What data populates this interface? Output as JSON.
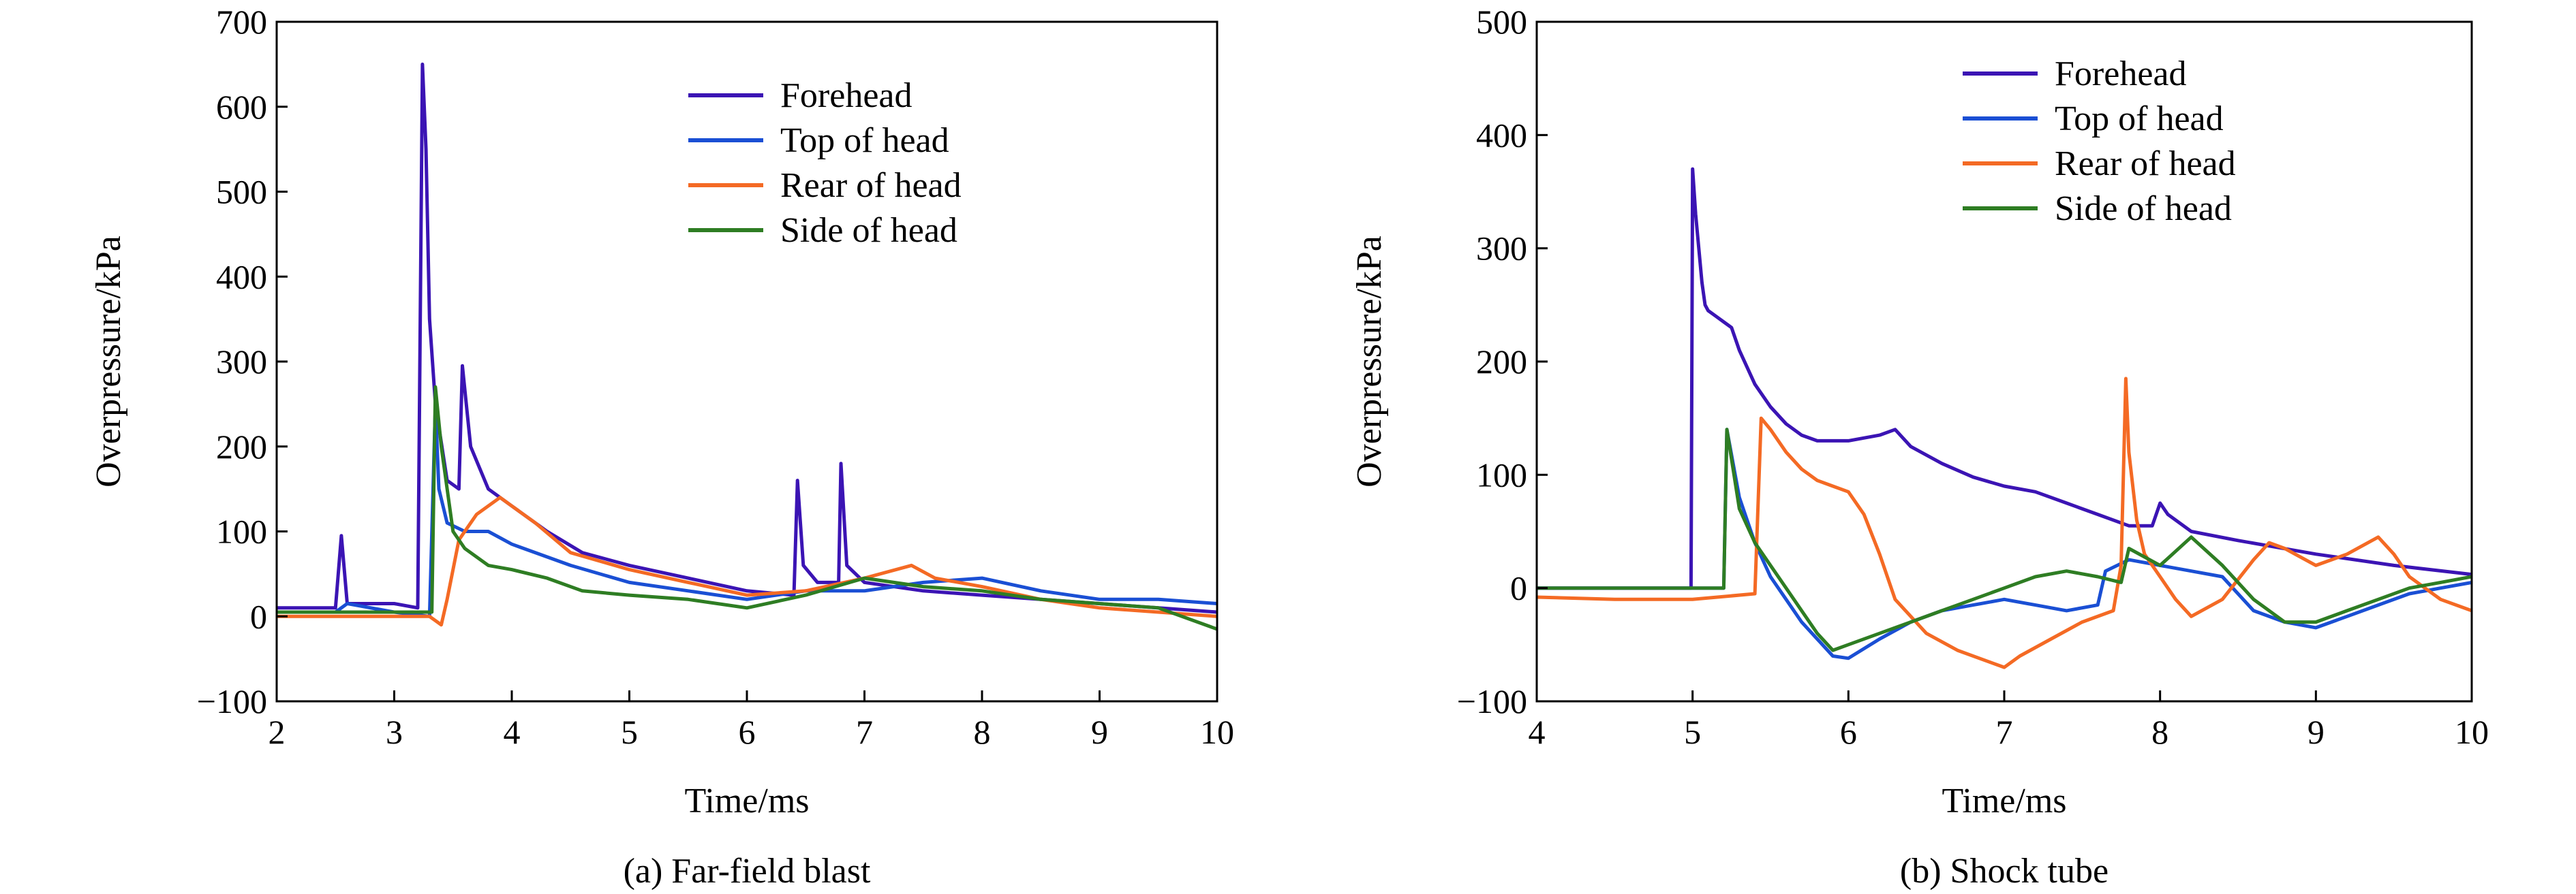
{
  "chart_data": [
    {
      "type": "line",
      "caption": "(a) Far-field blast",
      "xlabel": "Time/ms",
      "ylabel": "Overpressure/kPa",
      "xlim": [
        2,
        10
      ],
      "ylim": [
        -100,
        700
      ],
      "xticks": [
        "2",
        "3",
        "4",
        "5",
        "6",
        "7",
        "8",
        "9",
        "10"
      ],
      "yticks": [
        "−100",
        "0",
        "100",
        "200",
        "300",
        "400",
        "500",
        "600",
        "700"
      ],
      "legend_position": "top-right",
      "series": [
        {
          "name": "Forehead",
          "color": "#3b14b4",
          "x": [
            2,
            2.5,
            2.55,
            2.6,
            3.0,
            3.2,
            3.24,
            3.27,
            3.3,
            3.35,
            3.45,
            3.55,
            3.58,
            3.65,
            3.8,
            4.0,
            4.3,
            4.6,
            5.0,
            5.5,
            6.0,
            6.4,
            6.43,
            6.48,
            6.6,
            6.78,
            6.8,
            6.85,
            7.0,
            7.5,
            8.0,
            8.5,
            9.0,
            9.5,
            10.0
          ],
          "y": [
            10,
            10,
            95,
            15,
            15,
            10,
            650,
            550,
            350,
            250,
            160,
            150,
            295,
            200,
            150,
            130,
            100,
            75,
            60,
            45,
            30,
            25,
            160,
            60,
            40,
            40,
            180,
            60,
            40,
            30,
            25,
            20,
            15,
            10,
            5
          ]
        },
        {
          "name": "Top of head",
          "color": "#1a4fd4",
          "x": [
            2,
            2.5,
            2.6,
            3.0,
            3.3,
            3.35,
            3.38,
            3.45,
            3.6,
            3.8,
            4.0,
            4.5,
            5.0,
            5.5,
            6.0,
            6.5,
            7.0,
            7.5,
            8.0,
            8.5,
            9.0,
            9.5,
            10.0
          ],
          "y": [
            5,
            5,
            15,
            5,
            0,
            250,
            150,
            110,
            100,
            100,
            85,
            60,
            40,
            30,
            20,
            30,
            30,
            40,
            45,
            30,
            20,
            20,
            15
          ]
        },
        {
          "name": "Rear of head",
          "color": "#f46a24",
          "x": [
            2,
            3.0,
            3.3,
            3.4,
            3.45,
            3.55,
            3.7,
            3.9,
            4.0,
            4.2,
            4.5,
            5.0,
            5.5,
            6.0,
            6.5,
            7.0,
            7.4,
            7.6,
            8.0,
            8.5,
            9.0,
            9.5,
            10.0
          ],
          "y": [
            0,
            0,
            0,
            -10,
            20,
            90,
            120,
            140,
            130,
            110,
            75,
            55,
            40,
            25,
            30,
            45,
            60,
            45,
            35,
            20,
            10,
            5,
            0
          ]
        },
        {
          "name": "Side of head",
          "color": "#2e7d23",
          "x": [
            2,
            3.0,
            3.32,
            3.35,
            3.4,
            3.5,
            3.6,
            3.8,
            4.0,
            4.3,
            4.6,
            5.0,
            5.5,
            6.0,
            6.5,
            7.0,
            7.5,
            8.0,
            8.5,
            9.0,
            9.5,
            10.0
          ],
          "y": [
            5,
            5,
            5,
            270,
            200,
            100,
            80,
            60,
            55,
            45,
            30,
            25,
            20,
            10,
            25,
            45,
            35,
            30,
            20,
            15,
            10,
            -15
          ]
        }
      ]
    },
    {
      "type": "line",
      "caption": "(b) Shock tube",
      "xlabel": "Time/ms",
      "ylabel": "Overpressure/kPa",
      "xlim": [
        4,
        10
      ],
      "ylim": [
        -100,
        500
      ],
      "xticks": [
        "4",
        "5",
        "6",
        "7",
        "8",
        "9",
        "10"
      ],
      "yticks": [
        "−100",
        "0",
        "100",
        "200",
        "300",
        "400",
        "500"
      ],
      "legend_position": "top-right",
      "series": [
        {
          "name": "Forehead",
          "color": "#3b14b4",
          "x": [
            4.0,
            4.99,
            5.0,
            5.02,
            5.04,
            5.06,
            5.08,
            5.1,
            5.15,
            5.2,
            5.25,
            5.3,
            5.4,
            5.5,
            5.6,
            5.7,
            5.8,
            6.0,
            6.2,
            6.3,
            6.4,
            6.6,
            6.8,
            7.0,
            7.2,
            7.4,
            7.6,
            7.8,
            7.95,
            8.0,
            8.05,
            8.2,
            8.5,
            9.0,
            9.5,
            10.0
          ],
          "y": [
            0,
            0,
            370,
            330,
            300,
            270,
            250,
            245,
            240,
            235,
            230,
            210,
            180,
            160,
            145,
            135,
            130,
            130,
            135,
            140,
            125,
            110,
            98,
            90,
            85,
            75,
            65,
            55,
            55,
            75,
            65,
            50,
            42,
            30,
            20,
            12
          ]
        },
        {
          "name": "Top of head",
          "color": "#1a4fd4",
          "x": [
            4.0,
            5.2,
            5.22,
            5.3,
            5.4,
            5.5,
            5.6,
            5.7,
            5.8,
            5.9,
            6.0,
            6.2,
            6.4,
            6.6,
            6.8,
            7.0,
            7.2,
            7.4,
            7.6,
            7.65,
            7.8,
            8.0,
            8.2,
            8.4,
            8.6,
            8.8,
            9.0,
            9.2,
            9.4,
            9.6,
            9.8,
            10.0
          ],
          "y": [
            0,
            0,
            140,
            80,
            40,
            10,
            -10,
            -30,
            -45,
            -60,
            -62,
            -45,
            -30,
            -20,
            -15,
            -10,
            -15,
            -20,
            -15,
            15,
            25,
            20,
            15,
            10,
            -20,
            -30,
            -35,
            -25,
            -15,
            -5,
            0,
            5
          ]
        },
        {
          "name": "Rear of head",
          "color": "#f46a24",
          "x": [
            4.0,
            4.5,
            5.0,
            5.4,
            5.44,
            5.5,
            5.6,
            5.7,
            5.8,
            5.9,
            6.0,
            6.1,
            6.2,
            6.3,
            6.5,
            6.7,
            6.9,
            7.0,
            7.1,
            7.3,
            7.5,
            7.7,
            7.75,
            7.78,
            7.8,
            7.85,
            7.9,
            8.0,
            8.1,
            8.2,
            8.4,
            8.6,
            8.7,
            8.8,
            9.0,
            9.2,
            9.4,
            9.5,
            9.6,
            9.8,
            10.0
          ],
          "y": [
            -8,
            -10,
            -10,
            -5,
            150,
            140,
            120,
            105,
            95,
            90,
            85,
            65,
            30,
            -10,
            -40,
            -55,
            -65,
            -70,
            -60,
            -45,
            -30,
            -20,
            20,
            185,
            120,
            60,
            30,
            10,
            -10,
            -25,
            -10,
            25,
            40,
            35,
            20,
            30,
            45,
            30,
            10,
            -10,
            -20
          ]
        },
        {
          "name": "Side of head",
          "color": "#2e7d23",
          "x": [
            4.0,
            5.2,
            5.22,
            5.3,
            5.4,
            5.5,
            5.6,
            5.7,
            5.8,
            5.9,
            6.0,
            6.2,
            6.4,
            6.6,
            6.8,
            7.0,
            7.2,
            7.4,
            7.6,
            7.75,
            7.8,
            8.0,
            8.2,
            8.4,
            8.6,
            8.8,
            9.0,
            9.2,
            9.4,
            9.6,
            9.8,
            10.0
          ],
          "y": [
            0,
            0,
            140,
            70,
            40,
            20,
            0,
            -20,
            -40,
            -55,
            -50,
            -40,
            -30,
            -20,
            -10,
            0,
            10,
            15,
            10,
            5,
            35,
            20,
            45,
            20,
            -10,
            -30,
            -30,
            -20,
            -10,
            0,
            5,
            10
          ]
        }
      ]
    }
  ]
}
